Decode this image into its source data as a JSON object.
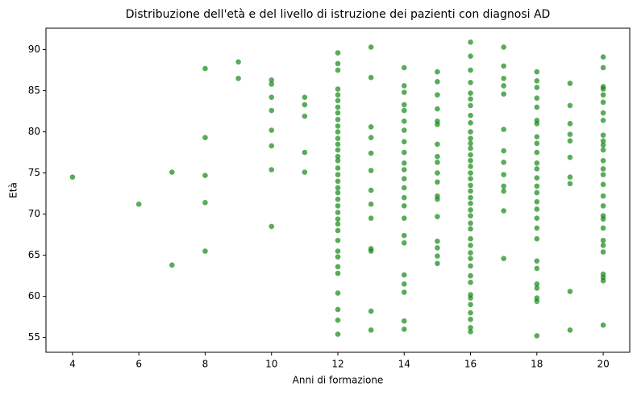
{
  "chart_data": {
    "type": "scatter",
    "title": "Distribuzione dell'età e del livello di istruzione dei pazienti con diagnosi AD",
    "x_label": "Anni di formazione",
    "y_label": "Età",
    "color": "#008000",
    "grid": false,
    "xlim": [
      3.2,
      20.8
    ],
    "ylim": [
      53.2,
      92.6
    ],
    "xticks": [
      4,
      6,
      8,
      10,
      12,
      14,
      16,
      18,
      20
    ],
    "yticks": [
      55,
      60,
      65,
      70,
      75,
      80,
      85,
      90
    ],
    "x": [
      4,
      6,
      7,
      7,
      8,
      8,
      8,
      8,
      8,
      9,
      9,
      10,
      10,
      10,
      10,
      10,
      10,
      10,
      10,
      11,
      11,
      11,
      11,
      11,
      12,
      12,
      12,
      12,
      12,
      12,
      12,
      12,
      12,
      12,
      12,
      12,
      12,
      12,
      12,
      12,
      12,
      12,
      12,
      12,
      12,
      12,
      12,
      12,
      12,
      12,
      12,
      12,
      12,
      12,
      12,
      12,
      12,
      12,
      12,
      12,
      13,
      13,
      13,
      13,
      13,
      13,
      13,
      13,
      13,
      13,
      13,
      13,
      13,
      14,
      14,
      14,
      14,
      14,
      14,
      14,
      14,
      14,
      14,
      14,
      14,
      14,
      14,
      14,
      14,
      14,
      14,
      14,
      14,
      14,
      14,
      14,
      15,
      15,
      15,
      15,
      15,
      15,
      15,
      15,
      15,
      15,
      15,
      15,
      15,
      15,
      15,
      15,
      15,
      15,
      16,
      16,
      16,
      16,
      16,
      16,
      16,
      16,
      16,
      16,
      16,
      16,
      16,
      16,
      16,
      16,
      16,
      16,
      16,
      16,
      16,
      16,
      16,
      16,
      16,
      16,
      16,
      16,
      16,
      16,
      16,
      16,
      16,
      16,
      16,
      16,
      16,
      16,
      16,
      16,
      17,
      17,
      17,
      17,
      17,
      17,
      17,
      17,
      17,
      17,
      17,
      17,
      17,
      18,
      18,
      18,
      18,
      18,
      18,
      18,
      18,
      18,
      18,
      18,
      18,
      18,
      18,
      18,
      18,
      18,
      18,
      18,
      18,
      18,
      18,
      18,
      18,
      18,
      18,
      18,
      19,
      19,
      19,
      19,
      19,
      19,
      19,
      19,
      19,
      19,
      20,
      20,
      20,
      20,
      20,
      20,
      20,
      20,
      20,
      20,
      20,
      20,
      20,
      20,
      20,
      20,
      20,
      20,
      20,
      20,
      20,
      20,
      20,
      20,
      20,
      20,
      20,
      20
    ],
    "y": [
      74.5,
      71.2,
      75.1,
      63.8,
      87.7,
      79.3,
      74.7,
      71.4,
      65.5,
      88.5,
      86.5,
      86.3,
      85.8,
      84.2,
      82.6,
      80.2,
      78.3,
      75.4,
      68.5,
      84.2,
      83.3,
      81.9,
      77.5,
      75.1,
      89.6,
      88.3,
      87.5,
      85.2,
      84.5,
      83.8,
      83.0,
      82.3,
      81.5,
      80.7,
      80.0,
      79.2,
      78.5,
      77.8,
      77.0,
      76.5,
      75.6,
      74.8,
      74.0,
      73.2,
      72.6,
      71.8,
      71.0,
      70.2,
      69.4,
      68.8,
      68.0,
      66.8,
      65.5,
      64.8,
      63.6,
      62.8,
      60.4,
      58.4,
      57.1,
      55.4,
      90.3,
      86.6,
      80.6,
      79.3,
      77.4,
      75.3,
      72.9,
      71.2,
      69.5,
      65.8,
      65.5,
      58.2,
      55.9,
      87.8,
      85.6,
      84.8,
      83.3,
      82.6,
      81.3,
      80.2,
      78.8,
      77.5,
      76.2,
      75.4,
      74.3,
      73.2,
      72.0,
      71.0,
      69.5,
      67.4,
      66.5,
      62.6,
      61.5,
      60.5,
      57.0,
      56.0,
      87.3,
      86.1,
      84.5,
      82.8,
      81.3,
      80.9,
      78.5,
      77.0,
      76.3,
      75.0,
      73.9,
      72.2,
      71.8,
      69.7,
      66.7,
      65.9,
      64.9,
      64.0,
      90.9,
      89.2,
      87.5,
      86.0,
      84.7,
      84.0,
      83.2,
      82.0,
      81.1,
      80.0,
      79.2,
      78.6,
      78.0,
      77.2,
      76.5,
      75.8,
      75.0,
      74.3,
      73.5,
      72.8,
      72.0,
      71.3,
      70.5,
      69.8,
      68.9,
      68.2,
      67.0,
      66.2,
      65.3,
      64.6,
      63.7,
      62.5,
      61.7,
      60.2,
      59.8,
      59.0,
      58.0,
      57.2,
      56.2,
      55.7,
      90.3,
      88.0,
      86.5,
      85.6,
      84.6,
      80.3,
      77.7,
      76.3,
      74.8,
      73.4,
      72.8,
      70.4,
      64.6,
      87.3,
      86.2,
      85.4,
      84.1,
      83.0,
      81.4,
      81.0,
      79.4,
      78.6,
      77.5,
      76.2,
      75.5,
      74.4,
      73.4,
      72.6,
      71.5,
      70.6,
      69.5,
      68.3,
      67.0,
      64.3,
      63.4,
      61.5,
      61.0,
      59.8,
      59.4,
      55.2,
      85.9,
      83.2,
      81.0,
      79.7,
      78.9,
      76.9,
      74.5,
      73.7,
      60.6,
      55.9,
      89.1,
      87.8,
      85.5,
      85.2,
      84.5,
      83.6,
      82.3,
      81.4,
      79.6,
      78.9,
      78.4,
      77.8,
      76.5,
      75.5,
      74.8,
      73.6,
      72.2,
      71.0,
      69.8,
      69.4,
      68.3,
      66.8,
      66.2,
      65.4,
      62.7,
      62.3,
      61.9,
      56.5
    ]
  }
}
